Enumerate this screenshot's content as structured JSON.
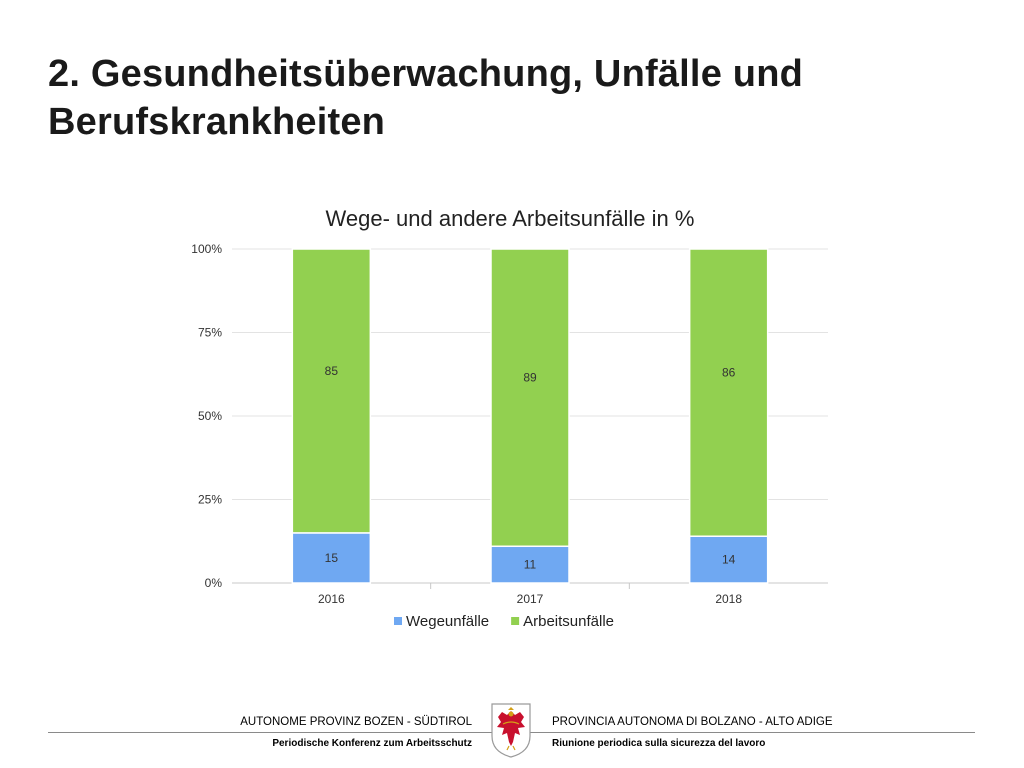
{
  "slide": {
    "title_line1": "2. Gesundheitsüberwachung, Unfälle und",
    "title_line2": "Berufskrankheiten"
  },
  "chart_data": {
    "type": "bar",
    "stacked": true,
    "title": "Wege- und andere Arbeitsunfälle in %",
    "categories": [
      "2016",
      "2017",
      "2018"
    ],
    "series": [
      {
        "name": "Wegeunfälle",
        "values": [
          15,
          11,
          14
        ],
        "color": "#6fa8f2"
      },
      {
        "name": "Arbeitsunfälle",
        "values": [
          85,
          89,
          86
        ],
        "color": "#92d050"
      }
    ],
    "ylim": [
      0,
      100
    ],
    "yticks": [
      0,
      25,
      50,
      75,
      100
    ],
    "ytick_labels": [
      "0%",
      "25%",
      "50%",
      "75%",
      "100%"
    ],
    "grid": true,
    "legend_position": "bottom"
  },
  "footer": {
    "left_top": "AUTONOME PROVINZ BOZEN - SÜDTIROL",
    "left_bottom": "Periodische Konferenz zum Arbeitsschutz",
    "right_top": "PROVINCIA AUTONOMA DI BOLZANO - ALTO ADIGE",
    "right_bottom": "Riunione periodica sulla sicurezza del lavoro",
    "crest_icon": "tyrolean-eagle-crest-icon"
  }
}
